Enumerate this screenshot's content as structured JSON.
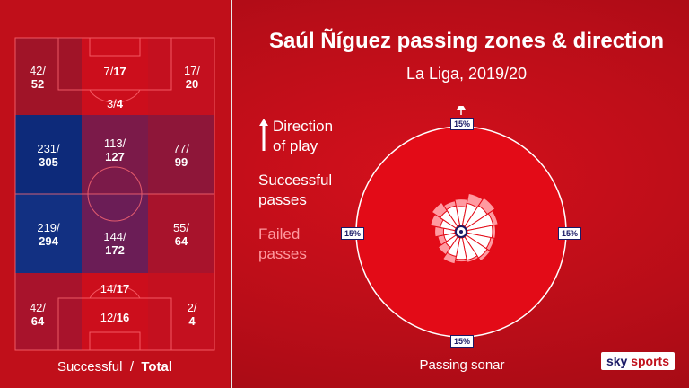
{
  "title": "Saúl Ñíguez passing zones & direction",
  "subtitle": "La Liga, 2019/20",
  "zones": [
    {
      "successful": "42/",
      "total": "52",
      "color": "#a01428"
    },
    {
      "successful": "7/",
      "total": "17",
      "color": "#cc0e1c"
    },
    {
      "successful": "17/",
      "total": "20",
      "color": "#c4101f"
    },
    {
      "successful": "3/",
      "total": "4",
      "color": "#cc0e1c"
    },
    {
      "successful": "231/",
      "total": "305",
      "color": "#0d2a7a"
    },
    {
      "successful": "113/",
      "total": "127",
      "color": "#7b1a49"
    },
    {
      "successful": "77/",
      "total": "99",
      "color": "#8e1639"
    },
    {
      "successful": "219/",
      "total": "294",
      "color": "#123082"
    },
    {
      "successful": "144/",
      "total": "172",
      "color": "#6b1d56"
    },
    {
      "successful": "55/",
      "total": "64",
      "color": "#a8132c"
    },
    {
      "successful": "14/",
      "total": "17",
      "color": "#cc0e1c"
    },
    {
      "successful": "42/",
      "total": "64",
      "color": "#a8132c"
    },
    {
      "successful": "12/",
      "total": "16",
      "color": "#cc0e1c"
    },
    {
      "successful": "2/",
      "total": "4",
      "color": "#c4101f"
    }
  ],
  "pitch_legend": {
    "successful": "Successful",
    "separator": "/",
    "total": "Total"
  },
  "legend": {
    "direction": [
      "Direction",
      "of play"
    ],
    "successful": [
      "Successful",
      "passes"
    ],
    "failed": [
      "Failed",
      "passes"
    ]
  },
  "sonar": {
    "label": "Passing sonar",
    "pct_top": "15%",
    "pct_bottom": "15%",
    "pct_left": "15%",
    "pct_right": "15%",
    "circle_color": "#e30b17",
    "failed_color": "#ff9aa0",
    "successful_color": "#ffffff",
    "segments": [
      {
        "direction": "N",
        "successful": 0.3,
        "failed": 0.42
      },
      {
        "direction": "NNE",
        "successful": 0.36,
        "failed": 0.52
      },
      {
        "direction": "NE",
        "successful": 0.4,
        "failed": 0.55
      },
      {
        "direction": "ENE",
        "successful": 0.42,
        "failed": 0.5
      },
      {
        "direction": "E",
        "successful": 0.4,
        "failed": 0.45
      },
      {
        "direction": "ESE",
        "successful": 0.38,
        "failed": 0.44
      },
      {
        "direction": "SE",
        "successful": 0.4,
        "failed": 0.46
      },
      {
        "direction": "SSE",
        "successful": 0.36,
        "failed": 0.4
      },
      {
        "direction": "S",
        "successful": 0.34,
        "failed": 0.38
      },
      {
        "direction": "SSW",
        "successful": 0.3,
        "failed": 0.42
      },
      {
        "direction": "SW",
        "successful": 0.2,
        "failed": 0.34
      },
      {
        "direction": "WSW",
        "successful": 0.18,
        "failed": 0.28
      },
      {
        "direction": "W",
        "successful": 0.18,
        "failed": 0.32
      },
      {
        "direction": "WNW",
        "successful": 0.24,
        "failed": 0.4
      },
      {
        "direction": "NW",
        "successful": 0.3,
        "failed": 0.46
      },
      {
        "direction": "NNW",
        "successful": 0.32,
        "failed": 0.4
      }
    ]
  },
  "brand": {
    "sky": "sky",
    "sports": "sports"
  }
}
